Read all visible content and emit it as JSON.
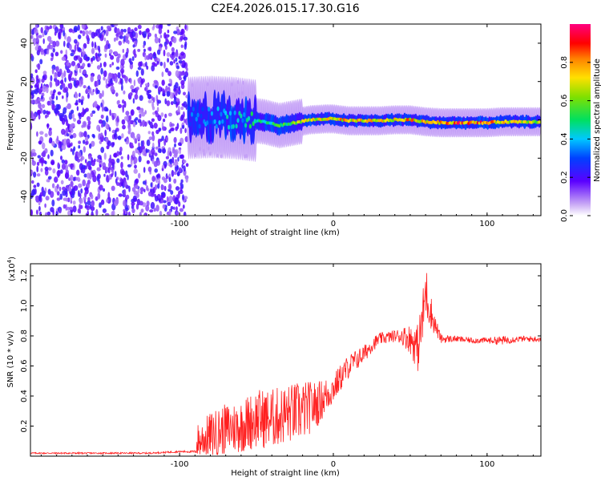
{
  "title": "C2E4.2026.015.17.30.G16",
  "chart_data": [
    {
      "type": "heatmap",
      "name": "spectrogram",
      "xlabel": "Height of straight line (km)",
      "ylabel": "Frequency (Hz)",
      "xlim": [
        -197,
        135
      ],
      "ylim": [
        -50,
        50
      ],
      "x_ticks": [
        -100,
        0,
        100
      ],
      "x_tick_labels": [
        "-100",
        "0",
        "100"
      ],
      "y_ticks": [
        -40,
        -20,
        0,
        20,
        40
      ],
      "y_tick_labels": [
        "-40",
        "-20",
        "0",
        "20",
        "40"
      ],
      "noise_region_x": [
        -197,
        -95
      ],
      "ridge": {
        "x": [
          -94,
          -80,
          -65,
          -55,
          -45,
          -35,
          -25,
          -15,
          -5,
          0,
          10,
          20,
          30,
          40,
          50,
          60,
          70,
          80,
          90,
          100,
          110,
          120,
          135
        ],
        "freq": [
          1,
          1.5,
          1,
          0,
          -1,
          -3,
          -1.5,
          0,
          0.5,
          0.5,
          -0.5,
          -0.5,
          -0.5,
          0,
          0,
          -1,
          -1.5,
          -1.5,
          -1.5,
          -1.5,
          -1,
          -1,
          -1
        ],
        "amplitude": [
          0.35,
          0.4,
          0.45,
          0.5,
          0.5,
          0.6,
          0.65,
          0.75,
          0.8,
          0.85,
          0.8,
          0.85,
          0.8,
          0.8,
          0.85,
          0.85,
          0.9,
          0.95,
          0.95,
          0.9,
          0.8,
          0.75,
          0.7
        ]
      },
      "colorbar": {
        "label": "Normalized spectral amplitude",
        "range": [
          0,
          1
        ],
        "ticks": [
          0.0,
          0.2,
          0.4,
          0.6,
          0.8
        ],
        "tick_labels": [
          "0.0",
          "0.2",
          "0.4",
          "0.6",
          "0.8"
        ]
      }
    },
    {
      "type": "line",
      "name": "snr",
      "xlabel": "Height of straight line (km)",
      "ylabel": "SNR (10 * v/v)",
      "y_exponent_label": "(x10",
      "y_exponent": "4",
      "y_exponent_close": ")",
      "xlim": [
        -197,
        135
      ],
      "ylim": [
        0,
        1.28
      ],
      "x_ticks": [
        -100,
        0,
        100
      ],
      "x_tick_labels": [
        "-100",
        "0",
        "100"
      ],
      "y_ticks": [
        0.2,
        0.4,
        0.6,
        0.8,
        1.0,
        1.2
      ],
      "y_tick_labels": [
        "0.2",
        "0.4",
        "0.6",
        "0.8",
        "1.0",
        "1.2"
      ],
      "color": "#ff2020",
      "series": [
        {
          "name": "SNR",
          "x": [
            -197,
            -180,
            -160,
            -140,
            -120,
            -100,
            -90,
            -88,
            -80,
            -70,
            -60,
            -50,
            -40,
            -30,
            -20,
            -10,
            0,
            10,
            20,
            25,
            30,
            40,
            45,
            50,
            55,
            58,
            60,
            65,
            70,
            80,
            90,
            100,
            110,
            120,
            135
          ],
          "y": [
            0.02,
            0.02,
            0.02,
            0.02,
            0.02,
            0.03,
            0.03,
            0.1,
            0.14,
            0.18,
            0.2,
            0.25,
            0.25,
            0.28,
            0.3,
            0.35,
            0.45,
            0.6,
            0.68,
            0.74,
            0.78,
            0.8,
            0.8,
            0.78,
            0.72,
            0.9,
            1.1,
            0.9,
            0.78,
            0.78,
            0.77,
            0.77,
            0.77,
            0.78,
            0.78
          ],
          "jitter": [
            0.005,
            0.005,
            0.005,
            0.005,
            0.005,
            0.006,
            0.008,
            0.12,
            0.15,
            0.17,
            0.18,
            0.2,
            0.2,
            0.2,
            0.2,
            0.15,
            0.1,
            0.08,
            0.06,
            0.05,
            0.04,
            0.04,
            0.06,
            0.1,
            0.16,
            0.18,
            0.2,
            0.08,
            0.03,
            0.02,
            0.02,
            0.02,
            0.03,
            0.02,
            0.02
          ]
        }
      ]
    }
  ]
}
